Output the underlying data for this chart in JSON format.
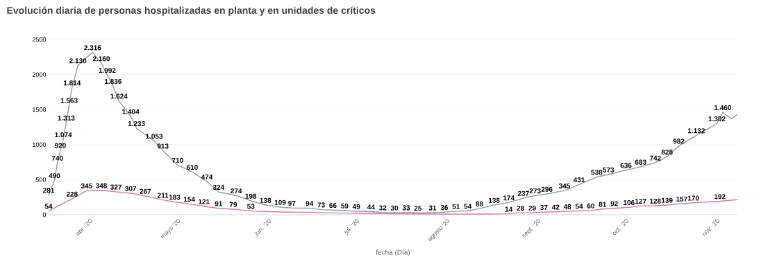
{
  "chart_data": {
    "type": "line",
    "title": "Evolución diaria de personas hospitalizadas en planta y en unidades de críticos",
    "xlabel": "fecha (Día)",
    "xlim": [
      "2020-03-18",
      "2020-11-08"
    ],
    "xticks": [
      {
        "value": "2020-04-01",
        "label": "abr. '20"
      },
      {
        "value": "2020-05-01",
        "label": "mayo '20"
      },
      {
        "value": "2020-06-01",
        "label": "jun. '20"
      },
      {
        "value": "2020-07-01",
        "label": "jul. '20"
      },
      {
        "value": "2020-08-01",
        "label": "agosto '20"
      },
      {
        "value": "2020-09-01",
        "label": "sept. '20"
      },
      {
        "value": "2020-10-01",
        "label": "oct. '20"
      },
      {
        "value": "2020-11-01",
        "label": "nov. '20"
      }
    ],
    "ylim": [
      0,
      2500
    ],
    "yticks": [
      0,
      500,
      1000,
      1500,
      2000,
      2500
    ],
    "grid": "y",
    "series": [
      {
        "color": "#8f9bb3",
        "x": [
          "2020-03-18",
          "2020-03-20",
          "2020-03-21",
          "2020-03-22",
          "2020-03-23",
          "2020-03-24",
          "2020-03-25",
          "2020-03-26",
          "2020-03-28",
          "2020-04-02",
          "2020-04-05",
          "2020-04-07",
          "2020-04-09",
          "2020-04-11",
          "2020-04-15",
          "2020-04-17",
          "2020-04-23",
          "2020-04-26",
          "2020-05-01",
          "2020-05-06",
          "2020-05-11",
          "2020-05-15",
          "2020-05-21",
          "2020-05-26",
          "2020-05-31",
          "2020-06-05",
          "2020-06-09",
          "2020-06-15",
          "2020-06-19",
          "2020-06-23",
          "2020-06-27",
          "2020-07-01",
          "2020-07-06",
          "2020-07-10",
          "2020-07-14",
          "2020-07-18",
          "2020-07-22",
          "2020-07-27",
          "2020-07-31",
          "2020-08-04",
          "2020-08-08",
          "2020-08-12",
          "2020-08-17",
          "2020-08-22",
          "2020-08-27",
          "2020-08-31",
          "2020-09-04",
          "2020-09-10",
          "2020-09-15",
          "2020-09-21",
          "2020-09-25",
          "2020-10-01",
          "2020-10-06",
          "2020-10-11",
          "2020-10-15",
          "2020-10-19",
          "2020-10-25",
          "2020-11-01",
          "2020-11-03",
          "2020-11-06",
          "2020-11-08"
        ],
        "values": [
          281,
          490,
          740,
          920,
          1074,
          1313,
          1563,
          1814,
          2130,
          2316,
          2160,
          1992,
          1836,
          1624,
          1404,
          1233,
          1053,
          913,
          710,
          610,
          474,
          324,
          274,
          198,
          138,
          109,
          97,
          94,
          73,
          66,
          59,
          49,
          44,
          32,
          30,
          33,
          25,
          31,
          36,
          51,
          54,
          88,
          138,
          174,
          237,
          273,
          296,
          345,
          431,
          538,
          573,
          636,
          683,
          742,
          828,
          982,
          1132,
          1302,
          1460,
          1370,
          1430
        ],
        "value_labels": [
          "281",
          "490",
          "740",
          "920",
          "1.074",
          "1.313",
          "1.563",
          "1.814",
          "2.130",
          "2.316",
          "2.160",
          "1.992",
          "1.836",
          "1.624",
          "1.404",
          "1.233",
          "1.053",
          "913",
          "710",
          "610",
          "474",
          "324",
          "274",
          "198",
          "138",
          "109",
          "97",
          "94",
          "73",
          "66",
          "59",
          "49",
          "44",
          "32",
          "30",
          "33",
          "25",
          "31",
          "36",
          "51",
          "54",
          "88",
          "138",
          "174",
          "237",
          "273",
          "296",
          "345",
          "431",
          "538",
          "573",
          "636",
          "683",
          "742",
          "828",
          "982",
          "1.132",
          "1.302",
          "1.460",
          null,
          null
        ]
      },
      {
        "color": "#d87aa6",
        "x": [
          "2020-03-18",
          "2020-03-26",
          "2020-03-31",
          "2020-04-05",
          "2020-04-10",
          "2020-04-15",
          "2020-04-20",
          "2020-04-26",
          "2020-04-30",
          "2020-05-05",
          "2020-05-10",
          "2020-05-15",
          "2020-05-20",
          "2020-05-26",
          "2020-06-05",
          "2020-06-20",
          "2020-07-05",
          "2020-07-20",
          "2020-08-05",
          "2020-08-15",
          "2020-08-22",
          "2020-08-26",
          "2020-08-30",
          "2020-09-03",
          "2020-09-07",
          "2020-09-11",
          "2020-09-15",
          "2020-09-19",
          "2020-09-23",
          "2020-09-27",
          "2020-10-02",
          "2020-10-06",
          "2020-10-11",
          "2020-10-15",
          "2020-10-20",
          "2020-10-24",
          "2020-11-02",
          "2020-11-08"
        ],
        "values": [
          54,
          228,
          345,
          348,
          327,
          307,
          267,
          211,
          183,
          154,
          121,
          91,
          79,
          53,
          40,
          28,
          18,
          12,
          9,
          10,
          14,
          28,
          29,
          37,
          42,
          48,
          54,
          60,
          81,
          92,
          106,
          127,
          128,
          139,
          157,
          170,
          192,
          215
        ],
        "value_labels": [
          "54",
          "228",
          "345",
          "348",
          "327",
          "307",
          "267",
          "211",
          "183",
          "154",
          "121",
          "91",
          "79",
          "53",
          null,
          null,
          null,
          null,
          null,
          null,
          "14",
          "28",
          "29",
          "37",
          "42",
          "48",
          "54",
          "60",
          "81",
          "92",
          "106",
          "127",
          "128",
          "139",
          "157",
          "170",
          "192",
          null
        ]
      }
    ]
  }
}
